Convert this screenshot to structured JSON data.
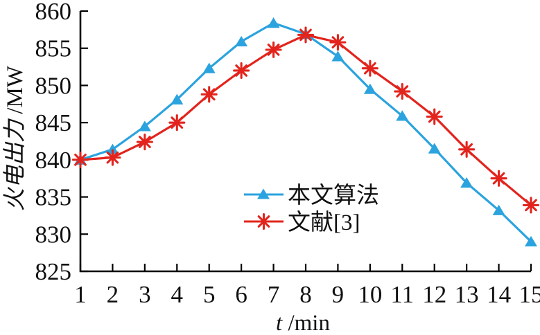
{
  "chart_data": {
    "type": "line",
    "title": "",
    "xlabel": "t/min",
    "xlabel_var": "t",
    "xlabel_unit": "/min",
    "ylabel": "火电出力/MW",
    "ylabel_main": "火电出力",
    "ylabel_unit": "/MW",
    "x": [
      1,
      2,
      3,
      4,
      5,
      6,
      7,
      8,
      9,
      10,
      11,
      12,
      13,
      14,
      15
    ],
    "x_tick_labels": [
      "1",
      "2",
      "3",
      "4",
      "5",
      "6",
      "7",
      "8",
      "9",
      "10",
      "11",
      "12",
      "13",
      "14",
      "15"
    ],
    "y_ticks": [
      825,
      830,
      835,
      840,
      845,
      850,
      855,
      860
    ],
    "xlim": [
      1,
      15
    ],
    "ylim": [
      825,
      860
    ],
    "grid": false,
    "legend_position": "inside-lower-center",
    "axis_color": "#000000",
    "series": [
      {
        "name": "本文算法",
        "marker": "triangle",
        "color": "#2ba3de",
        "values": [
          840.0,
          841.4,
          844.5,
          848.1,
          852.3,
          855.9,
          858.4,
          856.9,
          853.9,
          849.5,
          845.9,
          841.5,
          836.9,
          833.2,
          829.0
        ]
      },
      {
        "name": "文献[3]",
        "marker": "asterisk",
        "color": "#e2241d",
        "values": [
          840.0,
          840.3,
          842.4,
          845.0,
          848.8,
          852.0,
          854.8,
          856.8,
          855.8,
          852.3,
          849.2,
          845.8,
          841.4,
          837.5,
          833.9
        ]
      }
    ]
  }
}
